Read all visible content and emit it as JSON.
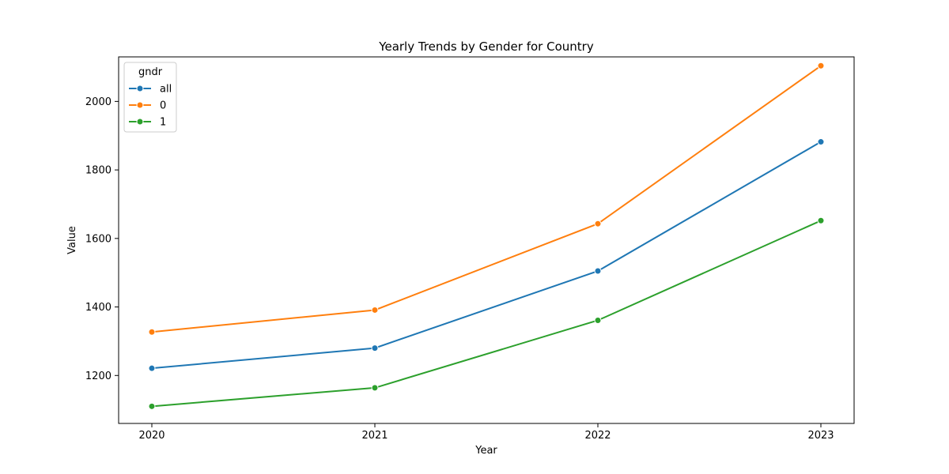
{
  "chart_data": {
    "type": "line",
    "title": "Yearly Trends by Gender for Country",
    "xlabel": "Year",
    "ylabel": "Value",
    "x": [
      "2020",
      "2021",
      "2022",
      "2023"
    ],
    "ylim": [
      1060,
      2130
    ],
    "yticks": [
      1200,
      1400,
      1600,
      1800,
      2000
    ],
    "grid": false,
    "legend": {
      "title": "gndr",
      "placement": "top-left"
    },
    "series": [
      {
        "name": "all",
        "color": "#1f77b4",
        "values": [
          1221,
          1280,
          1505,
          1882
        ]
      },
      {
        "name": "0",
        "color": "#ff7f0e",
        "values": [
          1327,
          1391,
          1643,
          2104
        ]
      },
      {
        "name": "1",
        "color": "#2ca02c",
        "values": [
          1110,
          1164,
          1361,
          1652
        ]
      }
    ],
    "marker": "circle"
  }
}
